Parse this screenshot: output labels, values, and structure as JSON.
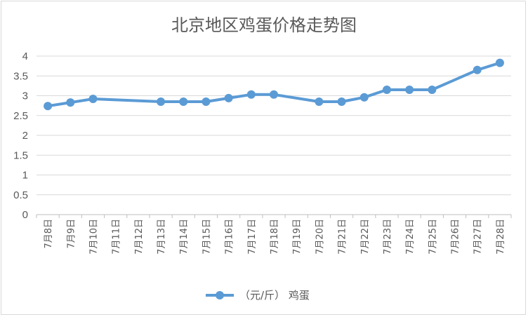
{
  "chart_data": {
    "type": "line",
    "title": "北京地区鸡蛋价格走势图",
    "xlabel": "",
    "ylabel": "",
    "ylim": [
      0,
      4
    ],
    "yticks": [
      "0",
      "0.5",
      "1",
      "1.5",
      "2",
      "2.5",
      "3",
      "3.5",
      "4"
    ],
    "categories": [
      "7月8日",
      "7月9日",
      "7月10日",
      "7月11日",
      "7月12日",
      "7月13日",
      "7月14日",
      "7月15日",
      "7月16日",
      "7月17日",
      "7月18日",
      "7月19日",
      "7月20日",
      "7月21日",
      "7月22日",
      "7月23日",
      "7月24日",
      "7月25日",
      "7月26日",
      "7月27日",
      "7月28日"
    ],
    "series": [
      {
        "name": "（元/斤） 鸡蛋",
        "color": "#5b9bd5",
        "values": [
          2.74,
          2.83,
          2.92,
          null,
          null,
          2.85,
          2.85,
          2.85,
          2.94,
          3.03,
          3.03,
          null,
          2.85,
          2.85,
          2.96,
          3.15,
          3.15,
          3.15,
          null,
          3.65,
          3.83
        ]
      }
    ],
    "grid": true,
    "legend_position": "bottom"
  }
}
